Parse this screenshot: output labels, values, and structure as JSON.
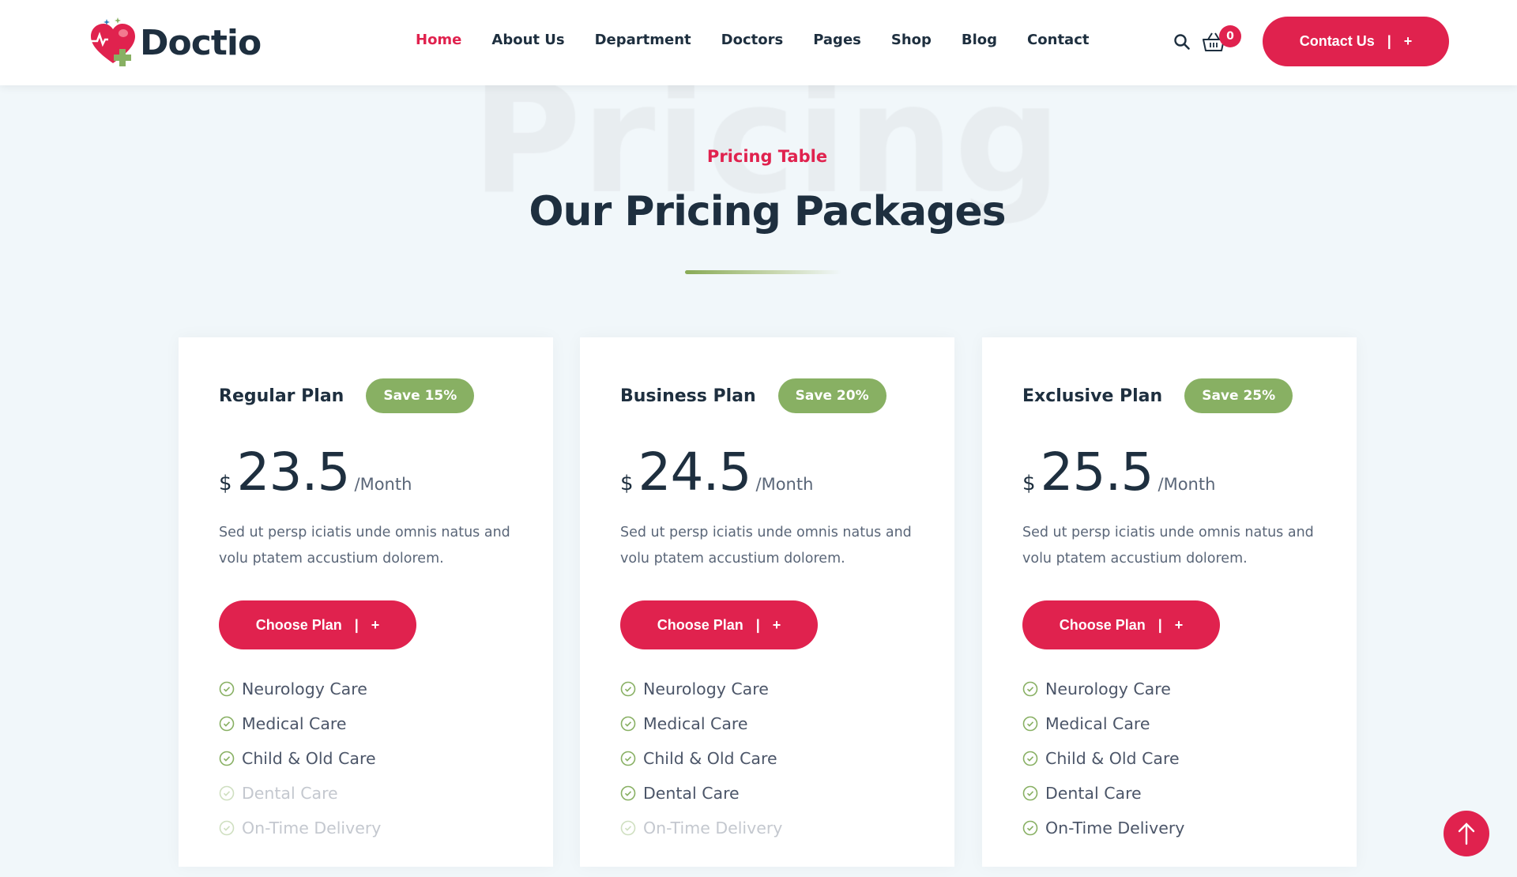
{
  "brand": {
    "name": "Doctio",
    "accent": "#e0224e",
    "green": "#88b063",
    "dark": "#1e2f3f"
  },
  "nav": {
    "items": [
      "Home",
      "About Us",
      "Department",
      "Doctors",
      "Pages",
      "Shop",
      "Blog",
      "Contact"
    ],
    "active": "Home"
  },
  "header": {
    "cart_count": "0",
    "contact_label": "Contact Us",
    "contact_sep": "|",
    "contact_icon": "+"
  },
  "section": {
    "watermark": "Pricing",
    "subtitle": "Pricing Table",
    "title": "Our Pricing Packages"
  },
  "plans": [
    {
      "name": "Regular Plan",
      "save": "Save 15%",
      "currency": "$",
      "price": "23.5",
      "period": "/Month",
      "desc": "Sed ut persp iciatis unde omnis natus and volu ptatem accustium dolorem.",
      "button": "Choose Plan",
      "features": [
        {
          "label": "Neurology Care",
          "included": true
        },
        {
          "label": "Medical Care",
          "included": true
        },
        {
          "label": "Child & Old Care",
          "included": true
        },
        {
          "label": "Dental Care",
          "included": false
        },
        {
          "label": "On-Time Delivery",
          "included": false
        }
      ]
    },
    {
      "name": "Business Plan",
      "save": "Save 20%",
      "currency": "$",
      "price": "24.5",
      "period": "/Month",
      "desc": "Sed ut persp iciatis unde omnis natus and volu ptatem accustium dolorem.",
      "button": "Choose Plan",
      "features": [
        {
          "label": "Neurology Care",
          "included": true
        },
        {
          "label": "Medical Care",
          "included": true
        },
        {
          "label": "Child & Old Care",
          "included": true
        },
        {
          "label": "Dental Care",
          "included": true
        },
        {
          "label": "On-Time Delivery",
          "included": false
        }
      ]
    },
    {
      "name": "Exclusive Plan",
      "save": "Save 25%",
      "currency": "$",
      "price": "25.5",
      "period": "/Month",
      "desc": "Sed ut persp iciatis unde omnis natus and volu ptatem accustium dolorem.",
      "button": "Choose Plan",
      "features": [
        {
          "label": "Neurology Care",
          "included": true
        },
        {
          "label": "Medical Care",
          "included": true
        },
        {
          "label": "Child & Old Care",
          "included": true
        },
        {
          "label": "Dental Care",
          "included": true
        },
        {
          "label": "On-Time Delivery",
          "included": true
        }
      ]
    }
  ]
}
